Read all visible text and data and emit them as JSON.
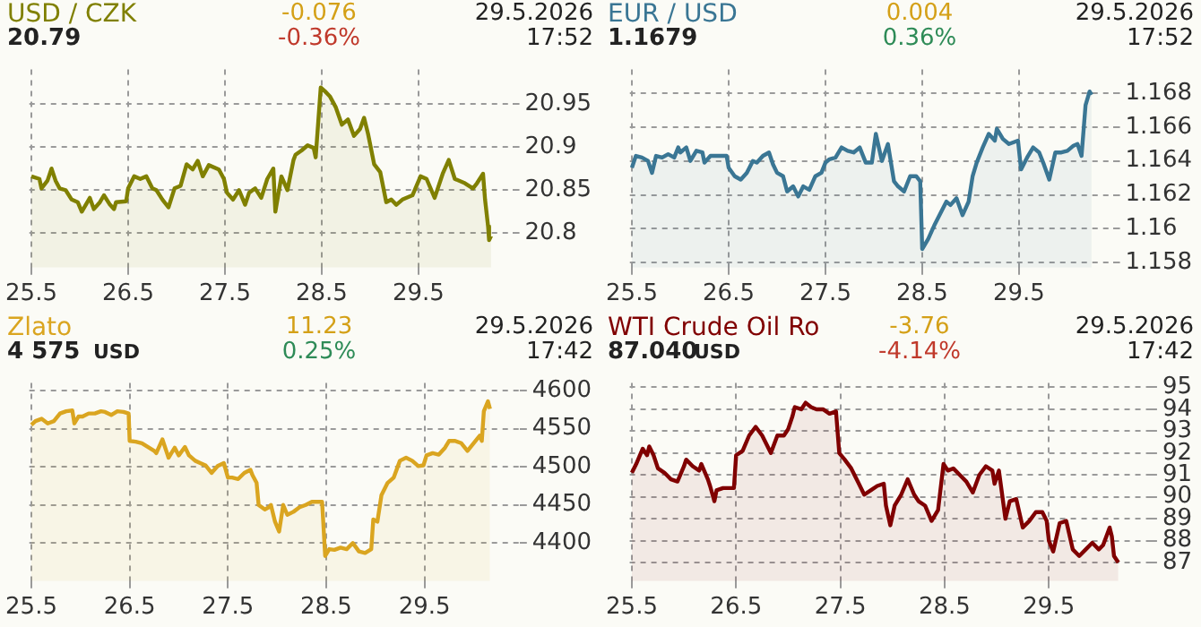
{
  "chart_data": [
    {
      "type": "area",
      "title": "USD / CZK",
      "annotations": [
        "20.79",
        "-0.076",
        "-0.36%",
        "29.5.2026",
        "17:52"
      ],
      "xlim": [
        "2026-05-24T23:30",
        "2026-05-29T23:15"
      ],
      "xticks": [
        {
          "value": "2026-05-25",
          "label": "25.5"
        },
        {
          "value": "2026-05-26",
          "label": "26.5"
        },
        {
          "value": "2026-05-27",
          "label": "27.5"
        },
        {
          "value": "2026-05-28",
          "label": "28.5"
        },
        {
          "value": "2026-05-29",
          "label": "29.5"
        }
      ],
      "ylim": [
        20.76,
        20.99
      ],
      "yticks": [
        20.8,
        20.85,
        20.9,
        20.95
      ],
      "grid": true,
      "series": [
        {
          "color": "#808000",
          "x": [
            "2026-05-25T00:00",
            "2026-05-25T02:00",
            "2026-05-25T02:30",
            "2026-05-25T04:00",
            "2026-05-25T05:00",
            "2026-05-25T06:00",
            "2026-05-25T07:00",
            "2026-05-25T08:30",
            "2026-05-25T10:00",
            "2026-05-25T11:30",
            "2026-05-25T12:30",
            "2026-05-25T13:30",
            "2026-05-25T14:30",
            "2026-05-25T15:30",
            "2026-05-25T17:00",
            "2026-05-25T18:00",
            "2026-05-25T19:30",
            "2026-05-25T20:30",
            "2026-05-25T21:00",
            "2026-05-25T23:30",
            "2026-05-26T00:00",
            "2026-05-26T01:30",
            "2026-05-26T03:00",
            "2026-05-26T04:30",
            "2026-05-26T06:00",
            "2026-05-26T07:00",
            "2026-05-26T08:30",
            "2026-05-26T10:00",
            "2026-05-26T11:30",
            "2026-05-26T13:00",
            "2026-05-26T14:30",
            "2026-05-26T16:00",
            "2026-05-26T17:15",
            "2026-05-26T18:30",
            "2026-05-26T20:00",
            "2026-05-26T22:30",
            "2026-05-26T23:45",
            "2026-05-27T00:30",
            "2026-05-27T02:00",
            "2026-05-27T03:30",
            "2026-05-27T05:00",
            "2026-05-27T06:00",
            "2026-05-27T07:30",
            "2026-05-27T09:00",
            "2026-05-27T10:30",
            "2026-05-27T12:00",
            "2026-05-27T12:30",
            "2026-05-27T14:00",
            "2026-05-27T15:30",
            "2026-05-27T17:00",
            "2026-05-27T17:30",
            "2026-05-27T19:00",
            "2026-05-27T20:30",
            "2026-05-27T22:00",
            "2026-05-27T22:30",
            "2026-05-27T23:45",
            "2026-05-28T00:45",
            "2026-05-28T02:00",
            "2026-05-28T03:30",
            "2026-05-28T05:00",
            "2026-05-28T06:30",
            "2026-05-28T08:00",
            "2026-05-28T09:30",
            "2026-05-28T10:30",
            "2026-05-28T11:30",
            "2026-05-28T13:00",
            "2026-05-28T14:30",
            "2026-05-28T16:00",
            "2026-05-28T17:15",
            "2026-05-28T18:30",
            "2026-05-28T20:00",
            "2026-05-28T22:30",
            "2026-05-29T00:30",
            "2026-05-29T02:00",
            "2026-05-29T04:00",
            "2026-05-29T06:00",
            "2026-05-29T07:30",
            "2026-05-29T09:00",
            "2026-05-29T11:30",
            "2026-05-29T13:30",
            "2026-05-29T14:30",
            "2026-05-29T16:00",
            "2026-05-29T16:30",
            "2026-05-29T17:15",
            "2026-05-29T17:30",
            "2026-05-29T18:00"
          ],
          "values": [
            20.866,
            20.863,
            20.852,
            20.861,
            20.875,
            20.861,
            20.852,
            20.85,
            20.839,
            20.836,
            20.825,
            20.833,
            20.841,
            20.828,
            20.836,
            20.844,
            20.833,
            20.828,
            20.836,
            20.837,
            20.852,
            20.866,
            20.863,
            20.866,
            20.852,
            20.85,
            20.839,
            20.83,
            20.852,
            20.855,
            20.88,
            20.874,
            20.884,
            20.866,
            20.879,
            20.874,
            20.863,
            20.847,
            20.839,
            20.85,
            20.833,
            20.847,
            20.852,
            20.841,
            20.863,
            20.875,
            20.825,
            20.866,
            20.85,
            20.885,
            20.891,
            20.896,
            20.902,
            20.899,
            20.888,
            20.969,
            20.965,
            20.959,
            20.946,
            20.926,
            20.932,
            20.913,
            20.921,
            20.934,
            20.915,
            20.88,
            20.871,
            20.836,
            20.839,
            20.833,
            20.839,
            20.844,
            20.866,
            20.863,
            20.841,
            20.869,
            20.885,
            20.863,
            20.858,
            20.852,
            20.858,
            20.869,
            20.839,
            20.808,
            20.792,
            20.797
          ]
        }
      ]
    },
    {
      "type": "area",
      "title": "EUR / USD",
      "annotations": [
        "1.1679",
        "0.004",
        "0.36%",
        "29.5.2026",
        "17:52"
      ],
      "xlim": [
        "2026-05-24T23:30",
        "2026-05-29T23:15"
      ],
      "xticks": [
        {
          "value": "2026-05-25",
          "label": "25.5"
        },
        {
          "value": "2026-05-26",
          "label": "26.5"
        },
        {
          "value": "2026-05-27",
          "label": "27.5"
        },
        {
          "value": "2026-05-28",
          "label": "28.5"
        },
        {
          "value": "2026-05-29",
          "label": "29.5"
        }
      ],
      "ylim": [
        1.1577,
        1.1694
      ],
      "yticks": [
        1.158,
        1.16,
        1.162,
        1.164,
        1.166,
        1.168
      ],
      "grid": true,
      "series": [
        {
          "color": "#3a7694",
          "x": [
            "2026-05-25T00:00",
            "2026-05-25T01:00",
            "2026-05-25T02:30",
            "2026-05-25T04:00",
            "2026-05-25T05:00",
            "2026-05-25T06:00",
            "2026-05-25T07:30",
            "2026-05-25T09:00",
            "2026-05-25T10:30",
            "2026-05-25T11:30",
            "2026-05-25T12:00",
            "2026-05-25T13:30",
            "2026-05-25T14:30",
            "2026-05-25T16:00",
            "2026-05-25T17:30",
            "2026-05-25T18:00",
            "2026-05-25T19:30",
            "2026-05-25T21:00",
            "2026-05-25T23:30",
            "2026-05-26T00:00",
            "2026-05-26T01:30",
            "2026-05-26T03:00",
            "2026-05-26T04:30",
            "2026-05-26T06:00",
            "2026-05-26T07:00",
            "2026-05-26T08:30",
            "2026-05-26T10:00",
            "2026-05-26T11:00",
            "2026-05-26T12:00",
            "2026-05-26T13:30",
            "2026-05-26T14:30",
            "2026-05-26T16:00",
            "2026-05-26T17:15",
            "2026-05-26T18:30",
            "2026-05-26T20:00",
            "2026-05-26T21:30",
            "2026-05-26T23:00",
            "2026-05-27T00:00",
            "2026-05-27T01:00",
            "2026-05-27T02:30",
            "2026-05-27T04:00",
            "2026-05-27T05:30",
            "2026-05-27T07:00",
            "2026-05-27T08:30",
            "2026-05-27T10:00",
            "2026-05-27T11:30",
            "2026-05-27T12:30",
            "2026-05-27T14:00",
            "2026-05-27T15:30",
            "2026-05-27T17:00",
            "2026-05-27T18:00",
            "2026-05-27T19:30",
            "2026-05-27T21:00",
            "2026-05-27T22:30",
            "2026-05-27T23:30",
            "2026-05-28T00:00",
            "2026-05-28T01:30",
            "2026-05-28T03:00",
            "2026-05-28T04:30",
            "2026-05-28T06:00",
            "2026-05-28T07:00",
            "2026-05-28T08:30",
            "2026-05-28T10:00",
            "2026-05-28T11:30",
            "2026-05-28T12:30",
            "2026-05-28T13:30",
            "2026-05-28T15:00",
            "2026-05-28T16:30",
            "2026-05-28T18:00",
            "2026-05-28T18:30",
            "2026-05-28T20:00",
            "2026-05-28T21:30",
            "2026-05-28T23:45",
            "2026-05-29T00:30",
            "2026-05-29T02:00",
            "2026-05-29T03:30",
            "2026-05-29T05:00",
            "2026-05-29T06:00",
            "2026-05-29T07:30",
            "2026-05-29T09:00",
            "2026-05-29T10:30",
            "2026-05-29T12:00",
            "2026-05-29T13:30",
            "2026-05-29T14:30",
            "2026-05-29T15:30",
            "2026-05-29T16:30",
            "2026-05-29T17:30",
            "2026-05-29T18:00"
          ],
          "values": [
            1.1636,
            1.1643,
            1.1642,
            1.164,
            1.1633,
            1.1643,
            1.1642,
            1.1644,
            1.1642,
            1.1648,
            1.1645,
            1.1648,
            1.164,
            1.1646,
            1.1645,
            1.1639,
            1.1643,
            1.1643,
            1.1643,
            1.1636,
            1.1631,
            1.1629,
            1.1633,
            1.164,
            1.1639,
            1.1643,
            1.1645,
            1.1638,
            1.1633,
            1.1631,
            1.1622,
            1.1625,
            1.1619,
            1.1625,
            1.1623,
            1.1631,
            1.1633,
            1.1639,
            1.1641,
            1.1642,
            1.1648,
            1.1646,
            1.1645,
            1.1648,
            1.1639,
            1.1639,
            1.1656,
            1.164,
            1.165,
            1.1628,
            1.1625,
            1.1622,
            1.1631,
            1.1631,
            1.1628,
            1.1588,
            1.1594,
            1.1602,
            1.1609,
            1.1616,
            1.1614,
            1.1618,
            1.1608,
            1.1616,
            1.1631,
            1.1639,
            1.1648,
            1.1656,
            1.1652,
            1.1659,
            1.1653,
            1.165,
            1.1652,
            1.1635,
            1.1642,
            1.1648,
            1.1645,
            1.1639,
            1.1629,
            1.1645,
            1.1645,
            1.1646,
            1.1649,
            1.165,
            1.1643,
            1.1673,
            1.1681,
            1.1679
          ]
        }
      ]
    },
    {
      "type": "area",
      "title": "Zlato",
      "ylabel": "USD",
      "annotations": [
        "4 575",
        "11.23",
        "0.25%",
        "29.5.2026",
        "17:42"
      ],
      "xlim": [
        "2026-05-24T23:30",
        "2026-05-29T23:15"
      ],
      "xticks": [
        {
          "value": "2026-05-25",
          "label": "25.5"
        },
        {
          "value": "2026-05-26",
          "label": "26.5"
        },
        {
          "value": "2026-05-27",
          "label": "27.5"
        },
        {
          "value": "2026-05-28",
          "label": "28.5"
        },
        {
          "value": "2026-05-29",
          "label": "29.5"
        }
      ],
      "ylim": [
        4350,
        4610
      ],
      "yticks": [
        4400,
        4450,
        4500,
        4550,
        4600
      ],
      "grid": true,
      "series": [
        {
          "color": "#daa520",
          "x": [
            "2026-05-25T00:00",
            "2026-05-25T01:00",
            "2026-05-25T02:30",
            "2026-05-25T04:00",
            "2026-05-25T05:30",
            "2026-05-25T07:00",
            "2026-05-25T08:30",
            "2026-05-25T10:00",
            "2026-05-25T10:30",
            "2026-05-25T11:30",
            "2026-05-25T12:30",
            "2026-05-25T14:00",
            "2026-05-25T15:30",
            "2026-05-25T17:00",
            "2026-05-25T18:00",
            "2026-05-25T19:30",
            "2026-05-25T21:00",
            "2026-05-25T22:30",
            "2026-05-25T23:45",
            "2026-05-26T00:00",
            "2026-05-26T01:30",
            "2026-05-26T03:00",
            "2026-05-26T04:30",
            "2026-05-26T06:00",
            "2026-05-26T06:30",
            "2026-05-26T08:00",
            "2026-05-26T09:30",
            "2026-05-26T11:00",
            "2026-05-26T12:00",
            "2026-05-26T13:30",
            "2026-05-26T14:30",
            "2026-05-26T16:00",
            "2026-05-26T17:15",
            "2026-05-26T18:30",
            "2026-05-26T20:00",
            "2026-05-26T21:30",
            "2026-05-26T23:00",
            "2026-05-27T00:00",
            "2026-05-27T01:00",
            "2026-05-27T02:30",
            "2026-05-27T04:00",
            "2026-05-27T05:30",
            "2026-05-27T06:00",
            "2026-05-27T07:00",
            "2026-05-27T07:30",
            "2026-05-27T09:00",
            "2026-05-27T10:00",
            "2026-05-27T10:30",
            "2026-05-27T11:30",
            "2026-05-27T12:30",
            "2026-05-27T13:30",
            "2026-05-27T14:30",
            "2026-05-27T16:00",
            "2026-05-27T17:30",
            "2026-05-27T19:00",
            "2026-05-27T20:30",
            "2026-05-27T22:00",
            "2026-05-27T23:00",
            "2026-05-27T23:45",
            "2026-05-28T00:45",
            "2026-05-28T02:00",
            "2026-05-28T03:30",
            "2026-05-28T05:00",
            "2026-05-28T06:30",
            "2026-05-28T08:00",
            "2026-05-28T09:30",
            "2026-05-28T11:00",
            "2026-05-28T11:30",
            "2026-05-28T12:30",
            "2026-05-28T13:30",
            "2026-05-28T15:00",
            "2026-05-28T16:30",
            "2026-05-28T18:00",
            "2026-05-28T19:30",
            "2026-05-28T21:00",
            "2026-05-28T22:30",
            "2026-05-28T23:45",
            "2026-05-29T00:30",
            "2026-05-29T02:00",
            "2026-05-29T03:30",
            "2026-05-29T05:00",
            "2026-05-29T06:00",
            "2026-05-29T07:30",
            "2026-05-29T09:00",
            "2026-05-29T10:30",
            "2026-05-29T12:00",
            "2026-05-29T13:30",
            "2026-05-29T14:00",
            "2026-05-29T14:30",
            "2026-05-29T15:30",
            "2026-05-29T16:00"
          ],
          "values": [
            4555,
            4560,
            4563,
            4557,
            4560,
            4570,
            4573,
            4574,
            4557,
            4566,
            4566,
            4570,
            4570,
            4573,
            4572,
            4568,
            4573,
            4572,
            4570,
            4534,
            4533,
            4531,
            4526,
            4521,
            4518,
            4536,
            4512,
            4525,
            4515,
            4526,
            4515,
            4508,
            4505,
            4502,
            4492,
            4501,
            4505,
            4486,
            4486,
            4484,
            4492,
            4496,
            4489,
            4479,
            4450,
            4444,
            4447,
            4450,
            4428,
            4415,
            4450,
            4437,
            4441,
            4447,
            4450,
            4454,
            4454,
            4454,
            4383,
            4392,
            4391,
            4394,
            4392,
            4400,
            4389,
            4387,
            4392,
            4431,
            4428,
            4463,
            4479,
            4486,
            4508,
            4512,
            4508,
            4501,
            4502,
            4515,
            4518,
            4516,
            4525,
            4534,
            4534,
            4531,
            4521,
            4531,
            4541,
            4534,
            4573,
            4586,
            4576
          ]
        }
      ]
    },
    {
      "type": "area",
      "title": "WTI Crude Oil Ro",
      "ylabel": "USD",
      "annotations": [
        "87.040",
        "-3.76",
        "-4.14%",
        "29.5.2026",
        "17:42"
      ],
      "xlim": [
        "2026-05-24T23:30",
        "2026-05-29T23:15"
      ],
      "xticks": [
        {
          "value": "2026-05-25",
          "label": "25.5"
        },
        {
          "value": "2026-05-26",
          "label": "26.5"
        },
        {
          "value": "2026-05-27",
          "label": "27.5"
        },
        {
          "value": "2026-05-28",
          "label": "28.5"
        },
        {
          "value": "2026-05-29",
          "label": "29.5"
        }
      ],
      "ylim": [
        86.15,
        95.2
      ],
      "yticks": [
        87,
        88,
        89,
        90,
        91,
        92,
        93,
        94,
        95
      ],
      "grid": true,
      "series": [
        {
          "color": "#800000",
          "x": [
            "2026-05-25T00:00",
            "2026-05-25T01:00",
            "2026-05-25T02:30",
            "2026-05-25T03:30",
            "2026-05-25T04:00",
            "2026-05-25T05:00",
            "2026-05-25T06:00",
            "2026-05-25T07:30",
            "2026-05-25T09:00",
            "2026-05-25T10:30",
            "2026-05-25T12:00",
            "2026-05-25T12:30",
            "2026-05-25T14:00",
            "2026-05-25T15:30",
            "2026-05-25T16:00",
            "2026-05-25T17:30",
            "2026-05-25T18:00",
            "2026-05-25T19:00",
            "2026-05-25T19:30",
            "2026-05-25T21:00",
            "2026-05-25T23:30",
            "2026-05-26T00:00",
            "2026-05-26T01:30",
            "2026-05-26T03:00",
            "2026-05-26T04:30",
            "2026-05-26T06:00",
            "2026-05-26T07:00",
            "2026-05-26T08:00",
            "2026-05-26T09:30",
            "2026-05-26T11:00",
            "2026-05-26T12:00",
            "2026-05-26T13:00",
            "2026-05-26T13:30",
            "2026-05-26T15:00",
            "2026-05-26T16:00",
            "2026-05-26T17:15",
            "2026-05-26T18:30",
            "2026-05-26T20:00",
            "2026-05-26T21:30",
            "2026-05-26T23:00",
            "2026-05-26T23:45",
            "2026-05-27T01:00",
            "2026-05-27T02:30",
            "2026-05-27T04:00",
            "2026-05-27T05:30",
            "2026-05-27T07:00",
            "2026-05-27T08:30",
            "2026-05-27T10:00",
            "2026-05-27T10:30",
            "2026-05-27T11:30",
            "2026-05-27T12:30",
            "2026-05-27T14:00",
            "2026-05-27T15:30",
            "2026-05-27T17:00",
            "2026-05-27T18:00",
            "2026-05-27T19:30",
            "2026-05-27T21:00",
            "2026-05-27T22:30",
            "2026-05-27T23:45",
            "2026-05-28T00:45",
            "2026-05-28T02:00",
            "2026-05-28T03:30",
            "2026-05-28T05:00",
            "2026-05-28T06:30",
            "2026-05-28T08:00",
            "2026-05-28T09:30",
            "2026-05-28T11:00",
            "2026-05-28T11:30",
            "2026-05-28T12:30",
            "2026-05-28T14:00",
            "2026-05-28T15:00",
            "2026-05-28T16:30",
            "2026-05-28T18:00",
            "2026-05-28T19:30",
            "2026-05-28T21:00",
            "2026-05-28T22:30",
            "2026-05-28T23:30",
            "2026-05-29T00:00",
            "2026-05-29T01:00",
            "2026-05-29T02:30",
            "2026-05-29T04:00",
            "2026-05-29T05:30",
            "2026-05-29T07:00",
            "2026-05-29T08:30",
            "2026-05-29T10:00",
            "2026-05-29T11:30",
            "2026-05-29T12:30",
            "2026-05-29T14:00",
            "2026-05-29T14:30",
            "2026-05-29T15:00",
            "2026-05-29T16:00"
          ],
          "values": [
            91.1,
            91.5,
            92.2,
            91.9,
            92.3,
            91.9,
            91.3,
            91.1,
            90.8,
            90.7,
            91.4,
            91.7,
            91.4,
            91.2,
            91.5,
            90.8,
            90.5,
            89.8,
            90.3,
            90.4,
            90.4,
            91.9,
            92.1,
            92.8,
            93.2,
            92.8,
            92.4,
            92.0,
            92.8,
            92.8,
            93.1,
            93.7,
            94.1,
            94.0,
            94.3,
            94.1,
            94.0,
            94.0,
            93.8,
            93.9,
            92.0,
            91.7,
            91.3,
            90.7,
            90.1,
            90.3,
            90.5,
            90.6,
            89.6,
            88.7,
            89.6,
            90.1,
            90.8,
            90.1,
            89.8,
            89.6,
            88.9,
            89.4,
            91.5,
            91.2,
            91.3,
            91.0,
            90.7,
            90.2,
            91.0,
            91.4,
            91.2,
            90.6,
            91.2,
            89.0,
            89.8,
            89.9,
            88.6,
            88.9,
            89.3,
            89.3,
            88.9,
            88.0,
            87.5,
            88.8,
            88.9,
            87.6,
            87.3,
            87.6,
            87.9,
            87.6,
            87.8,
            88.6,
            88.2,
            87.3,
            87.0
          ]
        }
      ]
    }
  ]
}
